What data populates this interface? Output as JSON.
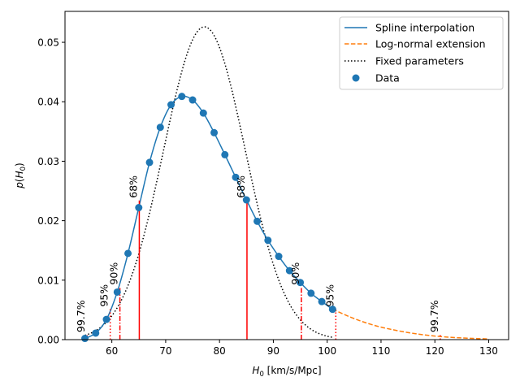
{
  "chart_data": {
    "type": "line",
    "xlabel": "H0 [km/s/Mpc]",
    "ylabel": "p(H0)",
    "xlim": [
      51.3,
      133.7
    ],
    "ylim": [
      0.0,
      0.0552
    ],
    "xticks": [
      60,
      70,
      80,
      90,
      100,
      110,
      120,
      130
    ],
    "yticks": [
      0.0,
      0.01,
      0.02,
      0.03,
      0.04,
      0.05
    ],
    "xtick_labels": [
      "60",
      "70",
      "80",
      "90",
      "100",
      "110",
      "120",
      "130"
    ],
    "ytick_labels": [
      "0.00",
      "0.01",
      "0.02",
      "0.03",
      "0.04",
      "0.05"
    ],
    "grid": false,
    "legend_position": "top-right",
    "series": [
      {
        "name": "Spline interpolation",
        "style": "solid",
        "color": "#1f77b4",
        "x": [
          55.0,
          57.0,
          59.0,
          61.0,
          63.0,
          65.0,
          67.0,
          69.0,
          71.0,
          73.0,
          75.0,
          77.0,
          79.0,
          81.0,
          83.0,
          85.0,
          87.0,
          89.0,
          91.0,
          93.0,
          95.0,
          97.0,
          99.0,
          101.0
        ],
        "y": [
          0.0002,
          0.0011,
          0.0034,
          0.008,
          0.0145,
          0.0222,
          0.0298,
          0.0357,
          0.0395,
          0.0409,
          0.0403,
          0.0381,
          0.0348,
          0.0311,
          0.0273,
          0.0235,
          0.0199,
          0.0167,
          0.014,
          0.0116,
          0.0096,
          0.0078,
          0.0064,
          0.0051
        ]
      },
      {
        "name": "Log-normal extension",
        "style": "dashed",
        "color": "#ff7f0e",
        "x": [
          101,
          102,
          104,
          106,
          108,
          110,
          112,
          114,
          116,
          118,
          120,
          122,
          124,
          126,
          128,
          130
        ],
        "y": [
          0.0051,
          0.0047,
          0.0039,
          0.0032,
          0.0026,
          0.0021,
          0.0017,
          0.00135,
          0.00105,
          0.0008,
          0.0006,
          0.00045,
          0.00033,
          0.00024,
          0.00017,
          0.00012
        ]
      },
      {
        "name": "Fixed parameters",
        "style": "dotted",
        "color": "#000000",
        "gaussian": {
          "mean": 77.2,
          "sigma": 7.58,
          "amplitude": 0.0526,
          "x_start": 55.0,
          "x_end": 101.0
        }
      }
    ],
    "scatter": {
      "name": "Data",
      "color": "#1f77b4",
      "x": [
        55.0,
        57.0,
        59.0,
        61.0,
        63.0,
        65.0,
        67.0,
        69.0,
        71.0,
        73.0,
        75.0,
        77.0,
        79.0,
        81.0,
        83.0,
        85.0,
        87.0,
        89.0,
        91.0,
        93.0,
        95.0,
        97.0,
        99.0,
        101.0
      ],
      "y": [
        0.0002,
        0.0011,
        0.0034,
        0.008,
        0.0145,
        0.0222,
        0.0298,
        0.0357,
        0.0395,
        0.0409,
        0.0403,
        0.0381,
        0.0348,
        0.0311,
        0.0273,
        0.0235,
        0.0199,
        0.0167,
        0.014,
        0.0116,
        0.0096,
        0.0078,
        0.0064,
        0.0051
      ]
    },
    "intervals": [
      {
        "label": "68%",
        "x": 65.1,
        "height": 0.0234,
        "style": "solid",
        "color": "#ff0000"
      },
      {
        "label": "68%",
        "x": 85.1,
        "height": 0.0234,
        "style": "solid",
        "color": "#ff0000"
      },
      {
        "label": "90%",
        "x": 61.5,
        "height": 0.0088,
        "style": "dashdot",
        "color": "#ff0000"
      },
      {
        "label": "90%",
        "x": 95.2,
        "height": 0.0088,
        "style": "dashdot",
        "color": "#ff0000"
      },
      {
        "label": "95%",
        "x": 59.7,
        "height": 0.0051,
        "style": "dotted",
        "color": "#ff0000"
      },
      {
        "label": "95%",
        "x": 101.6,
        "height": 0.0051,
        "style": "dotted",
        "color": "#ff0000"
      },
      {
        "label": "99.7%",
        "x": 55.4,
        "height": 0.0008,
        "style": "dotted",
        "color": "#ff0000"
      },
      {
        "label": "99.7%",
        "x": 121.0,
        "height": 0.0008,
        "style": "dotted",
        "color": "#ff0000"
      }
    ]
  }
}
